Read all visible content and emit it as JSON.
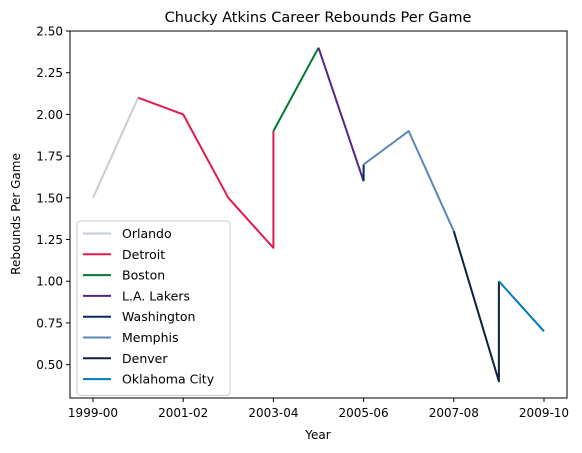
{
  "chart_data": {
    "type": "line",
    "title": "Chucky Atkins Career Rebounds Per Game",
    "xlabel": "Year",
    "ylabel": "Rebounds Per Game",
    "x_tick_labels": [
      "1999-00",
      "2001-02",
      "2003-04",
      "2005-06",
      "2007-08",
      "2009-10"
    ],
    "y_tick_labels": [
      "0.50",
      "0.75",
      "1.00",
      "1.25",
      "1.50",
      "1.75",
      "2.00",
      "2.25",
      "2.50"
    ],
    "y_ticks": [
      0.5,
      0.75,
      1.0,
      1.25,
      1.5,
      1.75,
      2.0,
      2.25,
      2.5
    ],
    "xlim": [
      "1999-00",
      "2009-10"
    ],
    "ylim": [
      0.3,
      2.5
    ],
    "grid": false,
    "legend_position": "lower-left",
    "series": [
      {
        "name": "Orlando",
        "color": "#c4ced4",
        "points": [
          [
            "1999-00",
            1.5
          ],
          [
            "2000-01",
            2.1
          ]
        ]
      },
      {
        "name": "Detroit",
        "color": "#e31a4f",
        "points": [
          [
            "2000-01",
            2.1
          ],
          [
            "2001-02",
            2.0
          ],
          [
            "2002-03",
            1.5
          ],
          [
            "2003-04",
            1.2
          ],
          [
            "2003-04",
            1.9
          ]
        ]
      },
      {
        "name": "Boston",
        "color": "#007a33",
        "points": [
          [
            "2003-04",
            1.9
          ],
          [
            "2004-05",
            2.4
          ]
        ]
      },
      {
        "name": "L.A. Lakers",
        "color": "#552583",
        "points": [
          [
            "2004-05",
            2.4
          ],
          [
            "2005-06",
            1.6
          ]
        ]
      },
      {
        "name": "Washington",
        "color": "#002b5c",
        "points": [
          [
            "2005-06",
            1.6
          ],
          [
            "2005-06",
            1.7
          ]
        ]
      },
      {
        "name": "Memphis",
        "color": "#5d88b5",
        "points": [
          [
            "2005-06",
            1.7
          ],
          [
            "2006-07",
            1.9
          ],
          [
            "2007-08",
            1.3
          ]
        ]
      },
      {
        "name": "Denver",
        "color": "#0e2240",
        "points": [
          [
            "2007-08",
            1.3
          ],
          [
            "2008-09",
            0.4
          ],
          [
            "2008-09",
            1.0
          ]
        ]
      },
      {
        "name": "Oklahoma City",
        "color": "#007ac1",
        "points": [
          [
            "2008-09",
            1.0
          ],
          [
            "2009-10",
            0.7
          ]
        ]
      }
    ]
  }
}
